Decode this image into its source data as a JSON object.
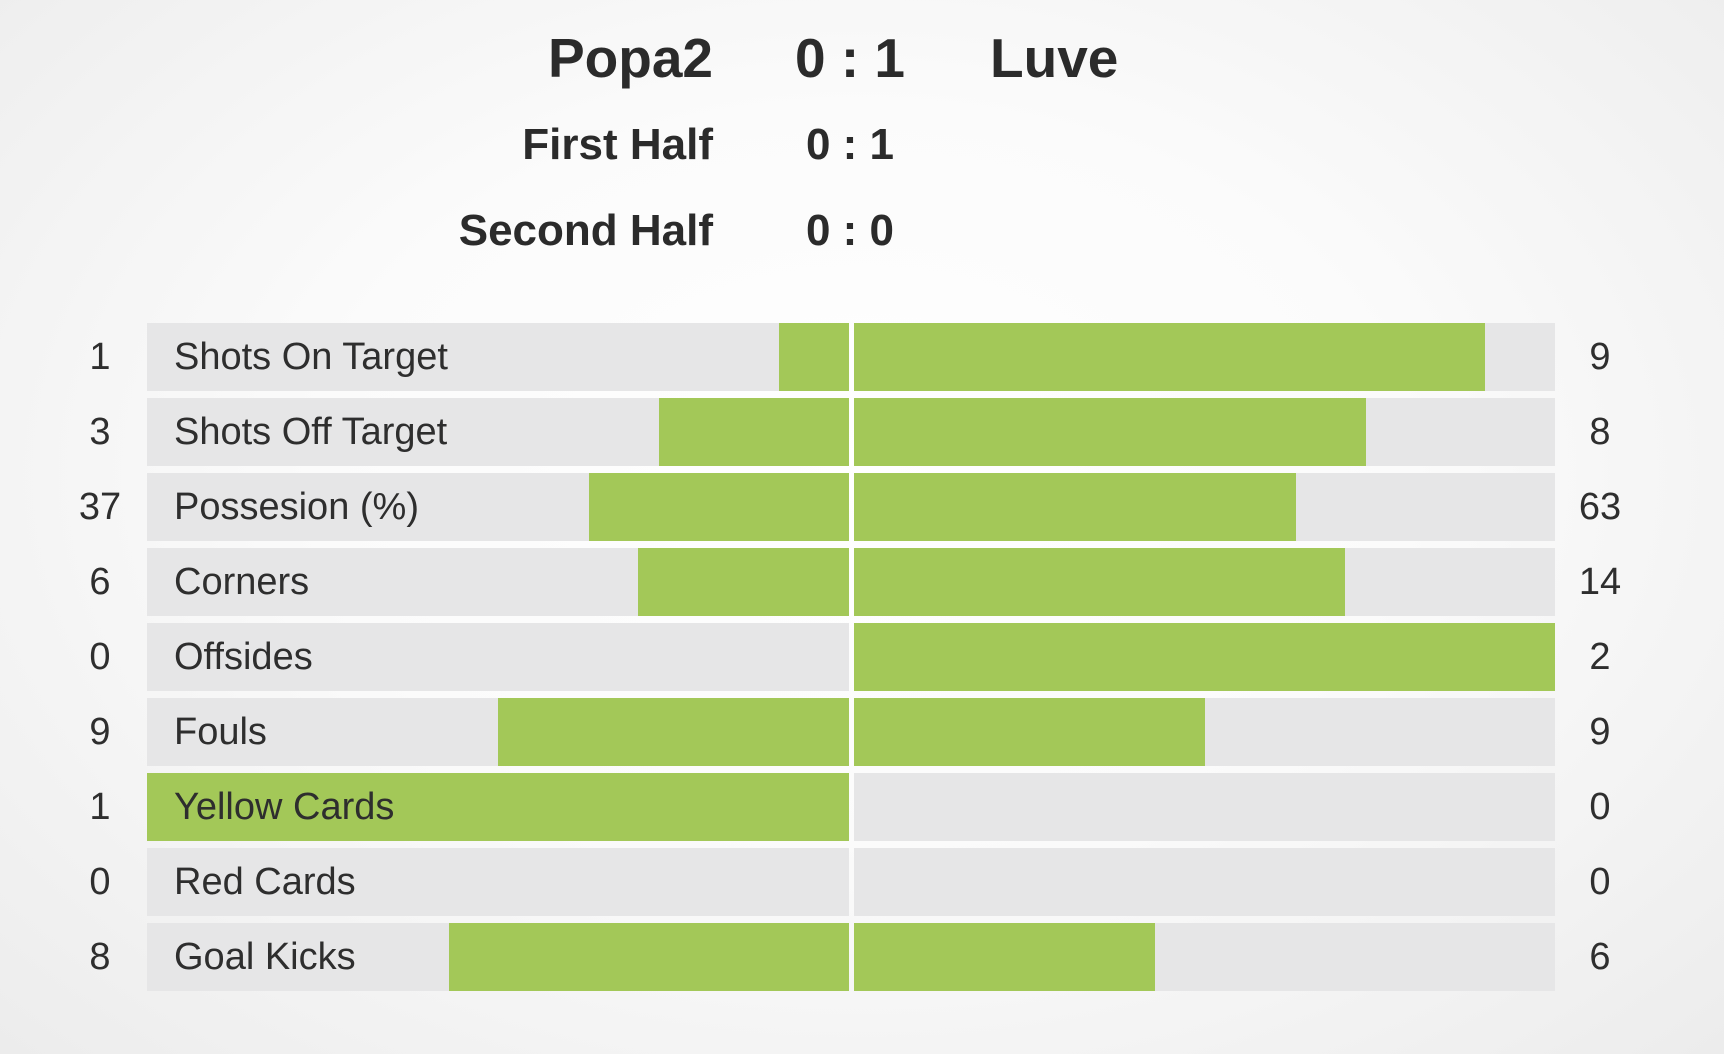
{
  "match": {
    "home_team": "Popa2",
    "away_team": "Luve",
    "score": "0 : 1",
    "first_half_label": "First Half",
    "first_half_score": "0 : 1",
    "second_half_label": "Second Half",
    "second_half_score": "0 : 0"
  },
  "colors": {
    "bar_fill": "#a3c858",
    "track": "#e6e6e7",
    "text": "#2b2b2b"
  },
  "stats": [
    {
      "label": "Shots On Target",
      "home": "1",
      "away": "9",
      "home_fraction": 0.1,
      "away_fraction": 0.9
    },
    {
      "label": "Shots Off Target",
      "home": "3",
      "away": "8",
      "home_fraction": 0.27,
      "away_fraction": 0.73
    },
    {
      "label": "Possesion (%)",
      "home": "37",
      "away": "63",
      "home_fraction": 0.37,
      "away_fraction": 0.63
    },
    {
      "label": "Corners",
      "home": "6",
      "away": "14",
      "home_fraction": 0.3,
      "away_fraction": 0.7
    },
    {
      "label": "Offsides",
      "home": "0",
      "away": "2",
      "home_fraction": 0.0,
      "away_fraction": 1.0
    },
    {
      "label": "Fouls",
      "home": "9",
      "away": "9",
      "home_fraction": 0.5,
      "away_fraction": 0.5
    },
    {
      "label": "Yellow Cards",
      "home": "1",
      "away": "0",
      "home_fraction": 1.0,
      "away_fraction": 0.0
    },
    {
      "label": "Red Cards",
      "home": "0",
      "away": "0",
      "home_fraction": 0.0,
      "away_fraction": 0.0
    },
    {
      "label": "Goal Kicks",
      "home": "8",
      "away": "6",
      "home_fraction": 0.57,
      "away_fraction": 0.43
    }
  ]
}
